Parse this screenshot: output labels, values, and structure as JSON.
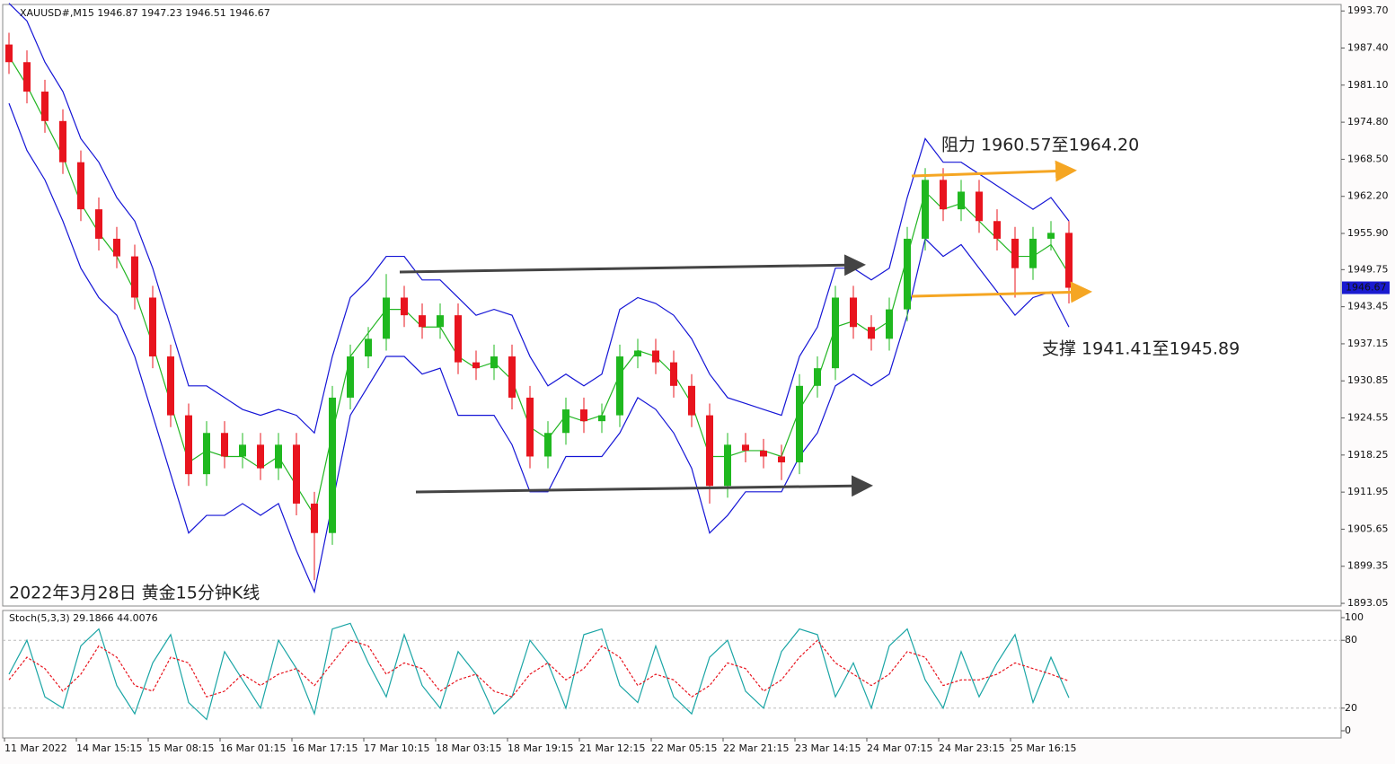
{
  "chart_data": [
    {
      "type": "candlestick",
      "title": "XAUUSD#,M15  1946.87 1947.23 1946.51 1946.67",
      "open": [
        1988,
        1985,
        1980,
        1975,
        1968,
        1960,
        1955,
        1952,
        1945,
        1935,
        1925,
        1915,
        1922,
        1918,
        1920,
        1916,
        1920,
        1910,
        1905,
        1928,
        1935,
        1938,
        1945,
        1942,
        1940,
        1942,
        1934,
        1933,
        1935,
        1928,
        1918,
        1922,
        1926,
        1924,
        1925,
        1935,
        1936,
        1934,
        1930,
        1925,
        1913,
        1920,
        1919,
        1918,
        1917,
        1930,
        1933,
        1945,
        1940,
        1938,
        1943,
        1955,
        1965,
        1960,
        1963,
        1958,
        1955,
        1950,
        1955,
        1956
      ],
      "high": [
        1990,
        1987,
        1982,
        1977,
        1970,
        1962,
        1957,
        1954,
        1947,
        1937,
        1927,
        1924,
        1924,
        1922,
        1922,
        1922,
        1922,
        1912,
        1930,
        1937,
        1940,
        1949,
        1947,
        1944,
        1944,
        1944,
        1936,
        1937,
        1937,
        1930,
        1924,
        1928,
        1928,
        1927,
        1937,
        1938,
        1938,
        1936,
        1932,
        1927,
        1922,
        1922,
        1921,
        1920,
        1932,
        1935,
        1947,
        1947,
        1942,
        1945,
        1957,
        1967,
        1967,
        1965,
        1965,
        1960,
        1957,
        1957,
        1958,
        1958
      ],
      "low": [
        1983,
        1978,
        1973,
        1966,
        1958,
        1953,
        1950,
        1943,
        1933,
        1923,
        1913,
        1913,
        1916,
        1916,
        1914,
        1914,
        1908,
        1897,
        1903,
        1926,
        1933,
        1936,
        1940,
        1938,
        1938,
        1932,
        1931,
        1931,
        1926,
        1916,
        1916,
        1920,
        1922,
        1922,
        1923,
        1933,
        1932,
        1928,
        1923,
        1910,
        1911,
        1917,
        1916,
        1914,
        1915,
        1928,
        1931,
        1938,
        1936,
        1936,
        1941,
        1953,
        1958,
        1958,
        1956,
        1953,
        1945,
        1948,
        1953,
        1944
      ],
      "close": [
        1985,
        1980,
        1975,
        1968,
        1960,
        1955,
        1952,
        1945,
        1935,
        1925,
        1915,
        1922,
        1918,
        1920,
        1916,
        1920,
        1910,
        1905,
        1928,
        1935,
        1938,
        1945,
        1942,
        1940,
        1942,
        1934,
        1933,
        1935,
        1928,
        1918,
        1922,
        1926,
        1924,
        1925,
        1935,
        1936,
        1934,
        1930,
        1925,
        1913,
        1920,
        1919,
        1918,
        1917,
        1930,
        1933,
        1945,
        1940,
        1938,
        1943,
        1955,
        1965,
        1960,
        1963,
        1958,
        1955,
        1950,
        1955,
        1956,
        1946.67
      ],
      "up_color": "#1fb81f",
      "down_color": "#e8141e",
      "bands": {
        "color": "#1515d6",
        "middle_color": "#22b522",
        "upper": [
          1995,
          1992,
          1985,
          1980,
          1972,
          1968,
          1962,
          1958,
          1950,
          1940,
          1930,
          1930,
          1928,
          1926,
          1925,
          1926,
          1925,
          1922,
          1935,
          1945,
          1948,
          1952,
          1952,
          1948,
          1948,
          1945,
          1942,
          1943,
          1942,
          1935,
          1930,
          1932,
          1930,
          1932,
          1943,
          1945,
          1944,
          1942,
          1938,
          1932,
          1928,
          1927,
          1926,
          1925,
          1935,
          1940,
          1950,
          1950,
          1948,
          1950,
          1962,
          1972,
          1968,
          1968,
          1966,
          1964,
          1962,
          1960,
          1962,
          1958
        ],
        "middle": [
          1986,
          1981,
          1975,
          1969,
          1961,
          1956,
          1952,
          1946,
          1937,
          1927,
          1917,
          1919,
          1918,
          1918,
          1916,
          1918,
          1913,
          1908,
          1922,
          1935,
          1939,
          1943,
          1943,
          1940,
          1940,
          1935,
          1933,
          1934,
          1931,
          1923,
          1921,
          1925,
          1924,
          1925,
          1932,
          1936,
          1935,
          1932,
          1927,
          1918,
          1918,
          1919,
          1919,
          1918,
          1926,
          1931,
          1940,
          1941,
          1939,
          1941,
          1952,
          1963,
          1960,
          1961,
          1958,
          1955,
          1952,
          1952,
          1954,
          1949
        ],
        "lower": [
          1978,
          1970,
          1965,
          1958,
          1950,
          1945,
          1942,
          1935,
          1925,
          1915,
          1905,
          1908,
          1908,
          1910,
          1908,
          1910,
          1902,
          1895,
          1910,
          1925,
          1930,
          1935,
          1935,
          1932,
          1933,
          1925,
          1925,
          1925,
          1920,
          1912,
          1912,
          1918,
          1918,
          1918,
          1922,
          1928,
          1926,
          1922,
          1916,
          1905,
          1908,
          1912,
          1912,
          1912,
          1918,
          1922,
          1930,
          1932,
          1930,
          1932,
          1942,
          1955,
          1952,
          1954,
          1950,
          1946,
          1942,
          1945,
          1946,
          1940
        ]
      },
      "ylim": [
        1892.6,
        1994.8
      ],
      "yticks": [
        {
          "value": 1993.7,
          "label": "1993.70"
        },
        {
          "value": 1987.4,
          "label": "1987.40"
        },
        {
          "value": 1981.1,
          "label": "1981.10"
        },
        {
          "value": 1974.8,
          "label": "1974.80"
        },
        {
          "value": 1968.5,
          "label": "1968.50"
        },
        {
          "value": 1962.2,
          "label": "1962.20"
        },
        {
          "value": 1955.9,
          "label": "1955.90"
        },
        {
          "value": 1949.75,
          "label": "1949.75"
        },
        {
          "value": 1943.45,
          "label": "1943.45"
        },
        {
          "value": 1937.15,
          "label": "1937.15"
        },
        {
          "value": 1930.85,
          "label": "1930.85"
        },
        {
          "value": 1924.55,
          "label": "1924.55"
        },
        {
          "value": 1918.25,
          "label": "1918.25"
        },
        {
          "value": 1911.95,
          "label": "1911.95"
        },
        {
          "value": 1905.65,
          "label": "1905.65"
        },
        {
          "value": 1899.35,
          "label": "1899.35"
        },
        {
          "value": 1893.05,
          "label": "1893.05"
        }
      ],
      "last_price": {
        "value": 1946.67,
        "label": "1946.67"
      },
      "annotations": [
        "阻力 1960.57至1964.20",
        "支撑 1941.41至1945.89",
        "2022年3月28日 黄金15分钟K线"
      ]
    },
    {
      "type": "line",
      "title": "Stoch(5,3,3) 29.1866 44.0076",
      "series": [
        {
          "color": "#1aa5a5",
          "values": [
            50,
            80,
            30,
            20,
            75,
            90,
            40,
            15,
            60,
            85,
            25,
            10,
            70,
            45,
            20,
            80,
            55,
            15,
            90,
            95,
            60,
            30,
            85,
            40,
            20,
            70,
            50,
            15,
            30,
            80,
            60,
            20,
            85,
            90,
            40,
            25,
            75,
            30,
            15,
            65,
            80,
            35,
            20,
            70,
            90,
            85,
            30,
            60,
            20,
            75,
            90,
            45,
            20,
            70,
            30,
            60,
            85,
            25,
            65,
            29.1866
          ]
        },
        {
          "color": "#e8141e",
          "dashed": true,
          "values": [
            45,
            65,
            55,
            35,
            50,
            75,
            65,
            40,
            35,
            65,
            60,
            30,
            35,
            50,
            40,
            50,
            55,
            40,
            60,
            80,
            75,
            50,
            60,
            55,
            35,
            45,
            50,
            35,
            30,
            50,
            60,
            45,
            55,
            75,
            65,
            40,
            50,
            45,
            30,
            40,
            60,
            55,
            35,
            45,
            65,
            80,
            60,
            50,
            40,
            50,
            70,
            65,
            40,
            45,
            45,
            50,
            60,
            55,
            50,
            44.0076
          ]
        }
      ],
      "ylim": [
        0,
        100
      ],
      "yticks": [
        0,
        20,
        80,
        100
      ],
      "levels": [
        20,
        80
      ],
      "xtick_labels": [
        "11 Mar 2022",
        "14 Mar 15:15",
        "15 Mar 08:15",
        "16 Mar 01:15",
        "16 Mar 17:15",
        "17 Mar 10:15",
        "18 Mar 03:15",
        "18 Mar 19:15",
        "21 Mar 12:15",
        "22 Mar 05:15",
        "22 Mar 21:15",
        "23 Mar 14:15",
        "24 Mar 07:15",
        "24 Mar 23:15",
        "25 Mar 16:15"
      ]
    }
  ]
}
